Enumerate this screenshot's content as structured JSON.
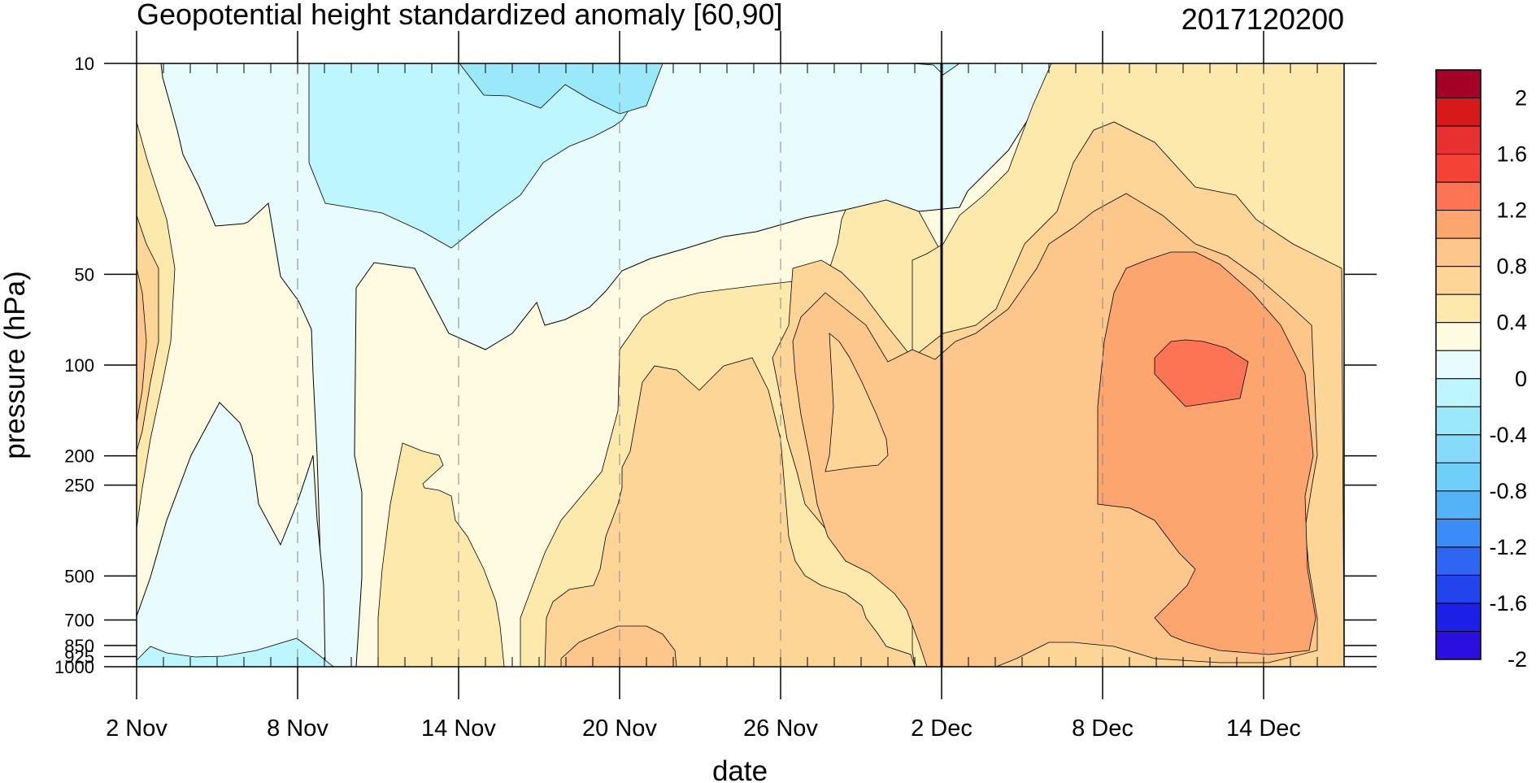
{
  "chart_data": {
    "type": "heatmap",
    "subtype": "filled-contour",
    "title": "Geopotential height standardized anomaly [60,90]",
    "date_stamp": "2017120200",
    "xlabel": "date",
    "ylabel": "pressure (hPa)",
    "x_ticks": [
      "2 Nov",
      "8 Nov",
      "14 Nov",
      "20 Nov",
      "26 Nov",
      "2 Dec",
      "8 Dec",
      "14 Dec"
    ],
    "x_range": [
      "2017-11-02",
      "2017-12-17"
    ],
    "y_ticks": [
      "10",
      "50",
      "100",
      "200",
      "250",
      "500",
      "700",
      "850",
      "925",
      "1000"
    ],
    "y_scale": "log",
    "y_range_hPa": [
      1000,
      10
    ],
    "vertical_marker": "2017-12-02",
    "colorbar": {
      "labels": [
        "2",
        "1.6",
        "1.2",
        "0.8",
        "0.4",
        "0",
        "-0.4",
        "-0.8",
        "-1.2",
        "-1.6",
        "-2"
      ],
      "levels": [
        -2.2,
        -2,
        -1.8,
        -1.6,
        -1.4,
        -1.2,
        -1,
        -0.8,
        -0.6,
        -0.4,
        -0.2,
        0,
        0.2,
        0.4,
        0.6,
        0.8,
        1,
        1.2,
        1.4,
        1.6,
        1.8,
        2,
        2.2
      ],
      "colors": [
        "#a50026",
        "#d7191c",
        "#e83030",
        "#f44236",
        "#fd7455",
        "#fda56f",
        "#fdc78c",
        "#fdd596",
        "#fee9ad",
        "#fffae0",
        "#e8fcfd",
        "#bdf6fe",
        "#9ae9fb",
        "#85dbf9",
        "#6ecff8",
        "#54b2f7",
        "#3a8df6",
        "#2e66f3",
        "#2144ec",
        "#1c20e6",
        "#2a0fe0"
      ]
    },
    "regions": [
      {
        "name": "negative-upper",
        "value": -0.2
      },
      {
        "name": "negative-core",
        "value": -0.4
      },
      {
        "name": "negative-low",
        "value": -0.2
      },
      {
        "name": "positive-early",
        "value": 0.2
      },
      {
        "name": "positive-mid",
        "value": 0.6
      },
      {
        "name": "positive-late",
        "value": 0.8
      },
      {
        "name": "positive-max",
        "value": 1.2
      }
    ]
  }
}
